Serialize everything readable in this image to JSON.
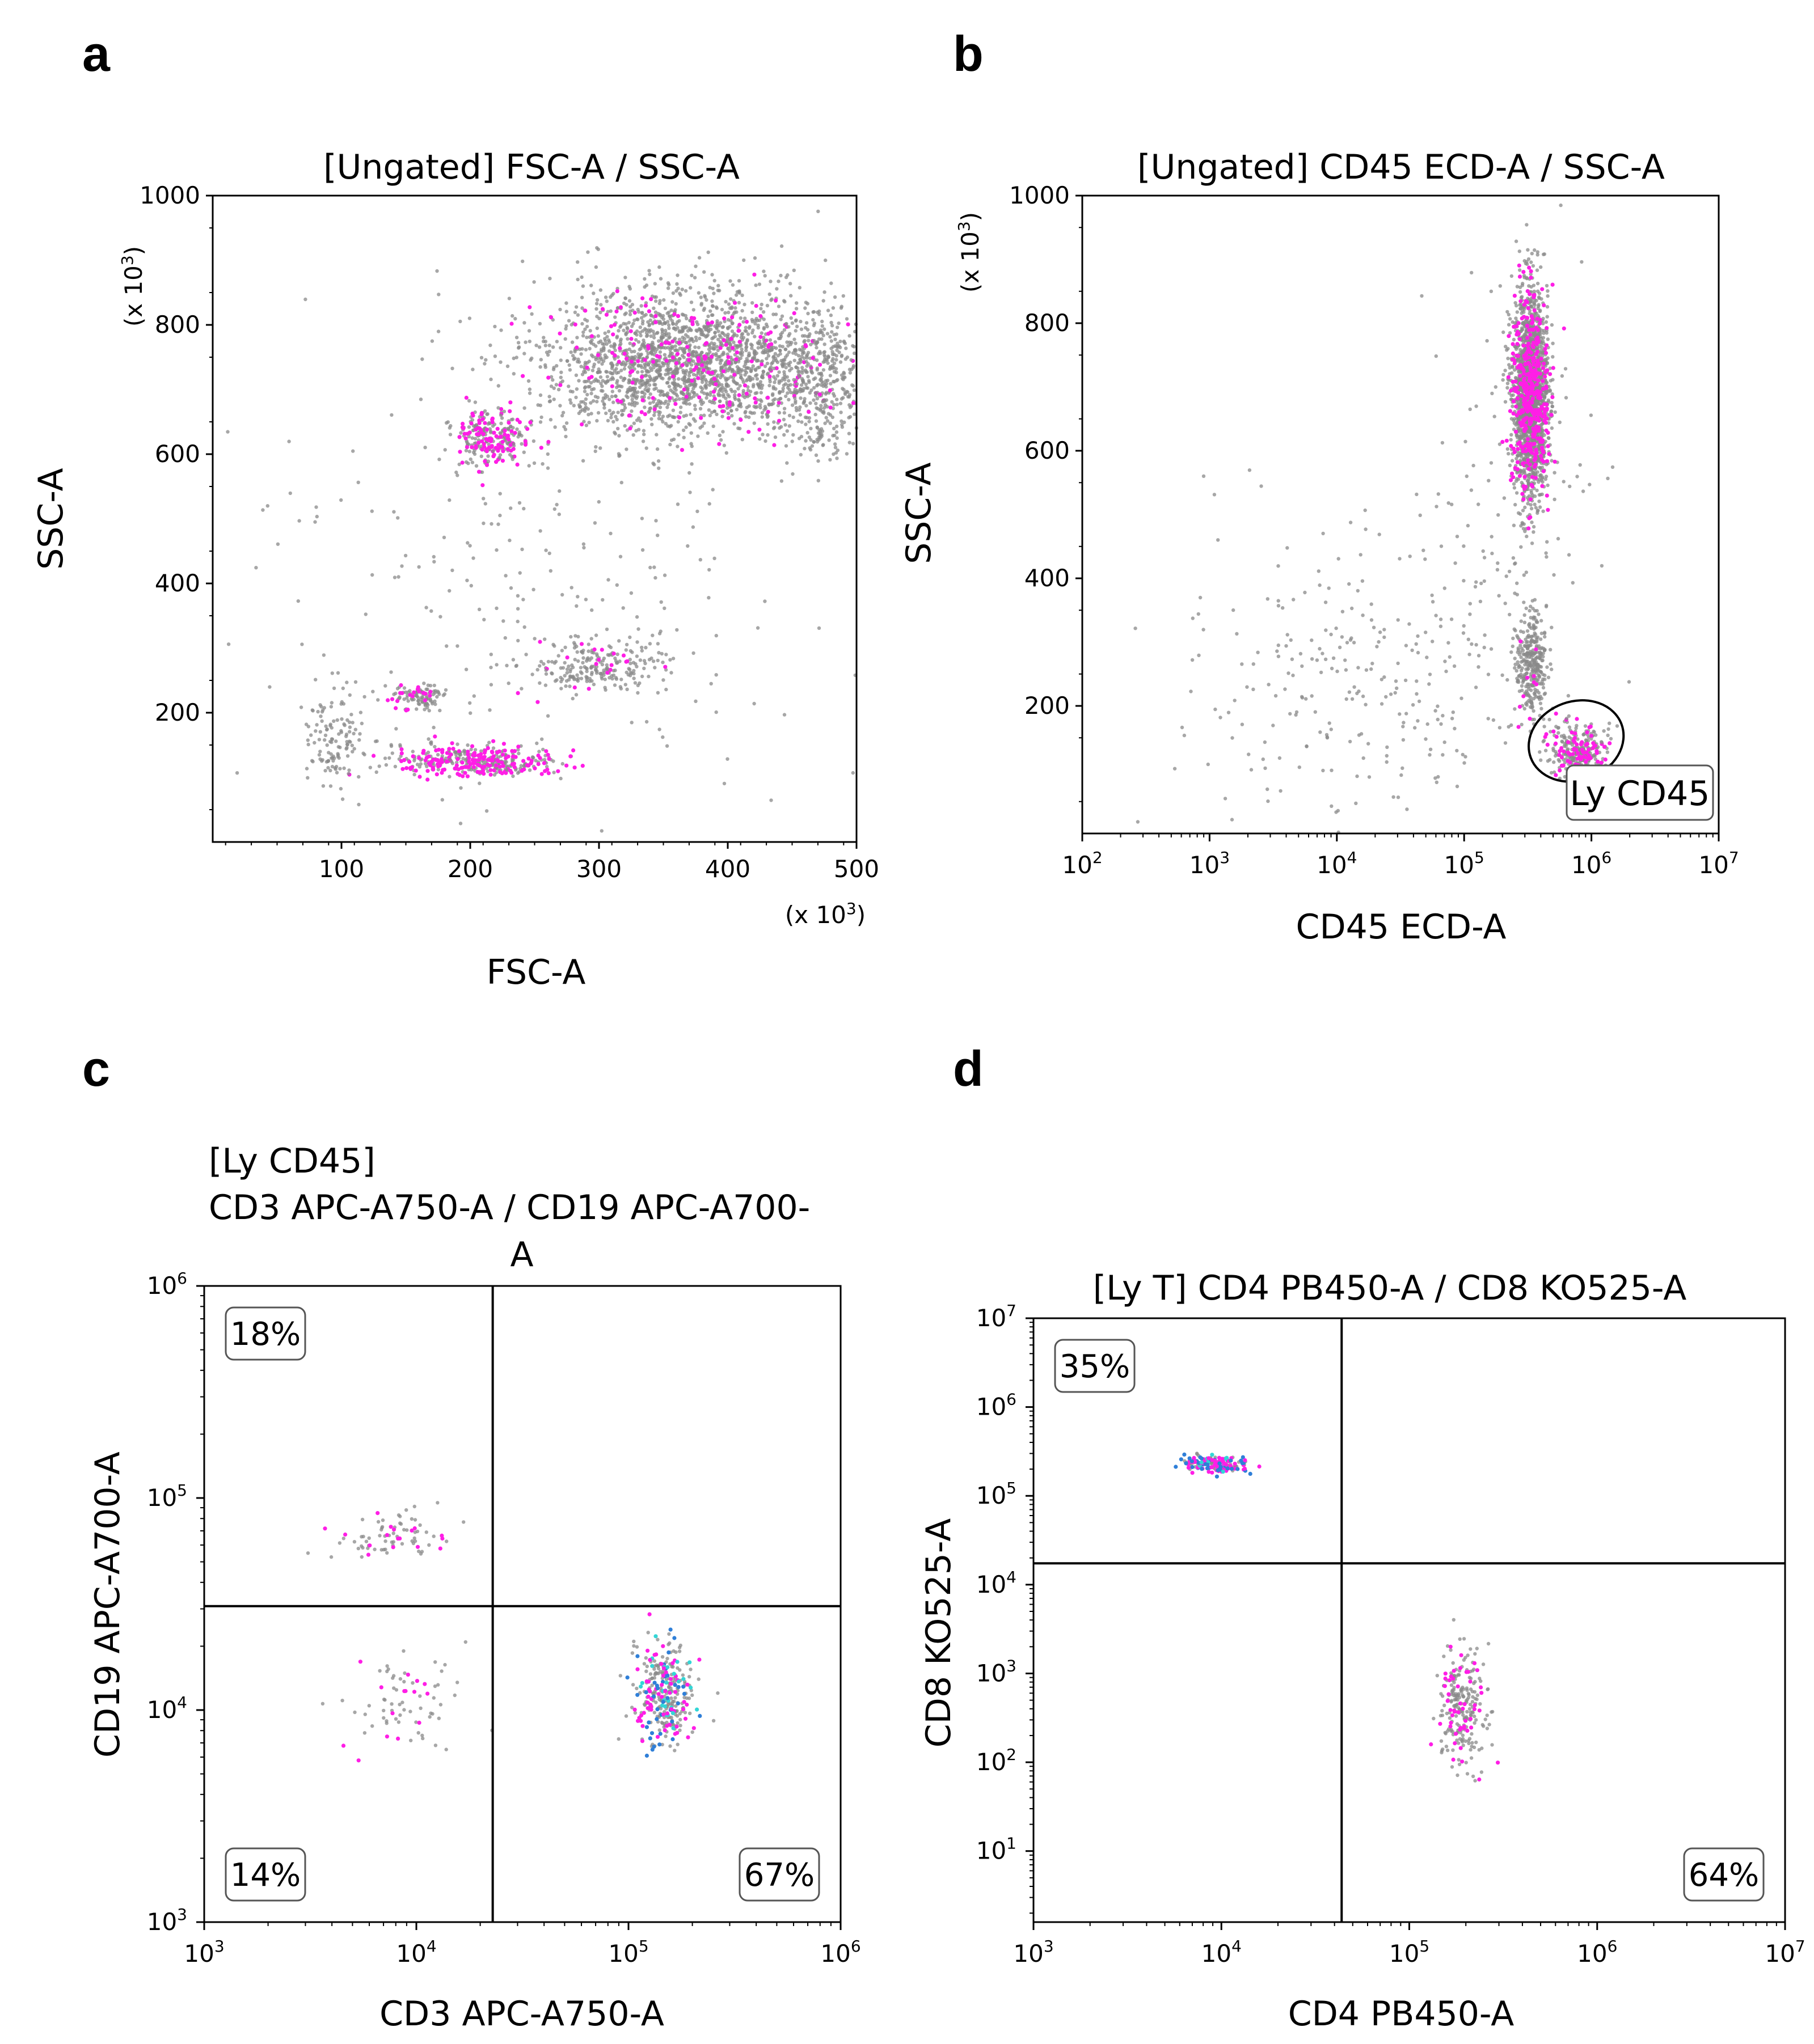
{
  "figure": {
    "panels": [
      "a",
      "b",
      "c",
      "d"
    ]
  },
  "colors": {
    "event_gray": "#8a8a8a",
    "event_magenta": "#ff1ee6",
    "event_blue": "#2f7fd8",
    "event_cyan": "#33d6d6",
    "axis": "#000000"
  },
  "chart_data": [
    {
      "id": "a",
      "panel_label": "a",
      "type": "scatter",
      "title": "[Ungated] FSC-A / SSC-A",
      "xlabel": "FSC-A",
      "ylabel": "SSC-A",
      "x_multiplier": "(x 10",
      "y_multiplier": "(x 10",
      "multiplier_exp": "3",
      "multiplier_close": ")",
      "xscale": "linear",
      "yscale": "linear",
      "xlim": [
        0,
        500
      ],
      "ylim": [
        0,
        1000
      ],
      "xticks": [
        100,
        200,
        300,
        400,
        500
      ],
      "yticks": [
        200,
        400,
        600,
        800,
        1000
      ],
      "xtick_labels": [
        "100",
        "200",
        "300",
        "400",
        "500"
      ],
      "ytick_labels": [
        "200",
        "400",
        "600",
        "800",
        "1000"
      ],
      "clusters": [
        {
          "x": 365,
          "y": 740,
          "sx": 55,
          "sy": 55,
          "n": 2200,
          "magenta": 0.1
        },
        {
          "x": 470,
          "y": 710,
          "sx": 22,
          "sy": 55,
          "n": 400,
          "magenta": 0.03
        },
        {
          "x": 215,
          "y": 625,
          "sx": 16,
          "sy": 22,
          "n": 280,
          "magenta": 0.35
        },
        {
          "x": 300,
          "y": 270,
          "sx": 30,
          "sy": 20,
          "n": 240,
          "magenta": 0.06
        },
        {
          "x": 160,
          "y": 225,
          "sx": 12,
          "sy": 10,
          "n": 110,
          "magenta": 0.25
        },
        {
          "x": 205,
          "y": 125,
          "sx": 32,
          "sy": 12,
          "n": 420,
          "magenta": 0.4
        },
        {
          "x": 95,
          "y": 160,
          "sx": 12,
          "sy": 45,
          "n": 130,
          "magenta": 0.0
        },
        {
          "x": 250,
          "y": 450,
          "sx": 110,
          "sy": 200,
          "n": 260,
          "magenta": 0.0
        }
      ]
    },
    {
      "id": "b",
      "panel_label": "b",
      "type": "scatter",
      "title": "[Ungated] CD45 ECD-A / SSC-A",
      "xlabel": "CD45 ECD-A",
      "ylabel": "SSC-A",
      "y_multiplier": "(x 10",
      "multiplier_exp": "3",
      "multiplier_close": ")",
      "xscale": "log",
      "yscale": "linear",
      "xlim": [
        2,
        7
      ],
      "ylim": [
        0,
        1000
      ],
      "xticks": [
        2,
        3,
        4,
        5,
        6,
        7
      ],
      "yticks": [
        200,
        400,
        600,
        800,
        1000
      ],
      "xtick_base": "10",
      "xtick_exps": [
        "2",
        "3",
        "4",
        "5",
        "6",
        "7"
      ],
      "ytick_labels": [
        "200",
        "400",
        "600",
        "800",
        "1000"
      ],
      "gate": {
        "label": "Ly CD45",
        "cx": 5.88,
        "cy": 145,
        "rx": 0.38,
        "ry": 62
      },
      "clusters": [
        {
          "x": 5.52,
          "y": 690,
          "sx": 0.07,
          "sy": 80,
          "n": 2100,
          "magenta": 0.18
        },
        {
          "x": 5.53,
          "y": 265,
          "sx": 0.06,
          "sy": 38,
          "n": 320,
          "magenta": 0.06
        },
        {
          "x": 5.9,
          "y": 125,
          "sx": 0.12,
          "sy": 22,
          "n": 340,
          "magenta": 0.22
        },
        {
          "x": 4.1,
          "y": 230,
          "sx": 0.7,
          "sy": 120,
          "n": 260,
          "magenta": 0.0
        },
        {
          "x": 5.3,
          "y": 450,
          "sx": 0.45,
          "sy": 180,
          "n": 110,
          "magenta": 0.0
        }
      ]
    },
    {
      "id": "c",
      "panel_label": "c",
      "type": "scatter",
      "title_lines": [
        "[Ly CD45]",
        "CD3 APC-A750-A / CD19 APC-A700-",
        "A"
      ],
      "xlabel": "CD3 APC-A750-A",
      "ylabel": "CD19 APC-A700-A",
      "xscale": "log",
      "yscale": "log",
      "xlim": [
        3,
        6
      ],
      "ylim": [
        3,
        6
      ],
      "xticks": [
        3,
        4,
        5,
        6
      ],
      "yticks": [
        3,
        4,
        5,
        6
      ],
      "tick_base": "10",
      "xtick_exps": [
        "3",
        "4",
        "5",
        "6"
      ],
      "ytick_exps": [
        "3",
        "4",
        "5",
        "6"
      ],
      "quadrant": {
        "x": 4.36,
        "y": 4.49
      },
      "quadrant_labels": [
        {
          "text": "18%",
          "pos": "top-left"
        },
        {
          "text": "14%",
          "pos": "bottom-left"
        },
        {
          "text": "67%",
          "pos": "bottom-right"
        }
      ],
      "clusters": [
        {
          "x": 3.88,
          "y": 4.82,
          "sx": 0.14,
          "sy": 0.06,
          "n": 80,
          "magenta": 0.2
        },
        {
          "x": 3.95,
          "y": 4.03,
          "sx": 0.14,
          "sy": 0.1,
          "n": 75,
          "magenta": 0.12
        },
        {
          "x": 5.17,
          "y": 4.07,
          "sx": 0.07,
          "sy": 0.12,
          "n": 340,
          "magenta": 0.2,
          "blue": 0.1,
          "cyan": 0.08
        }
      ]
    },
    {
      "id": "d",
      "panel_label": "d",
      "type": "scatter",
      "title": "[Ly T] CD4 PB450-A / CD8 KO525-A",
      "xlabel": "CD4 PB450-A",
      "ylabel": "CD8 KO525-A",
      "xscale": "log",
      "yscale": "log",
      "xlim": [
        3,
        7
      ],
      "ylim": [
        0.2,
        7
      ],
      "xticks": [
        3,
        4,
        5,
        6,
        7
      ],
      "yticks": [
        1,
        2,
        3,
        4,
        5,
        6,
        7
      ],
      "tick_base": "10",
      "xtick_exps": [
        "3",
        "4",
        "5",
        "6",
        "7"
      ],
      "ytick_exps": [
        "1",
        "2",
        "3",
        "4",
        "5",
        "6",
        "7"
      ],
      "quadrant": {
        "x": 4.64,
        "y": 4.24
      },
      "quadrant_labels": [
        {
          "text": "35%",
          "pos": "top-left"
        },
        {
          "text": "64%",
          "pos": "bottom-right"
        }
      ],
      "clusters": [
        {
          "x": 3.97,
          "y": 5.36,
          "sx": 0.09,
          "sy": 0.05,
          "n": 170,
          "magenta": 0.35,
          "blue": 0.25,
          "cyan": 0.05
        },
        {
          "x": 5.28,
          "y": 2.6,
          "sx": 0.06,
          "sy": 0.35,
          "n": 260,
          "magenta": 0.2
        }
      ]
    }
  ]
}
